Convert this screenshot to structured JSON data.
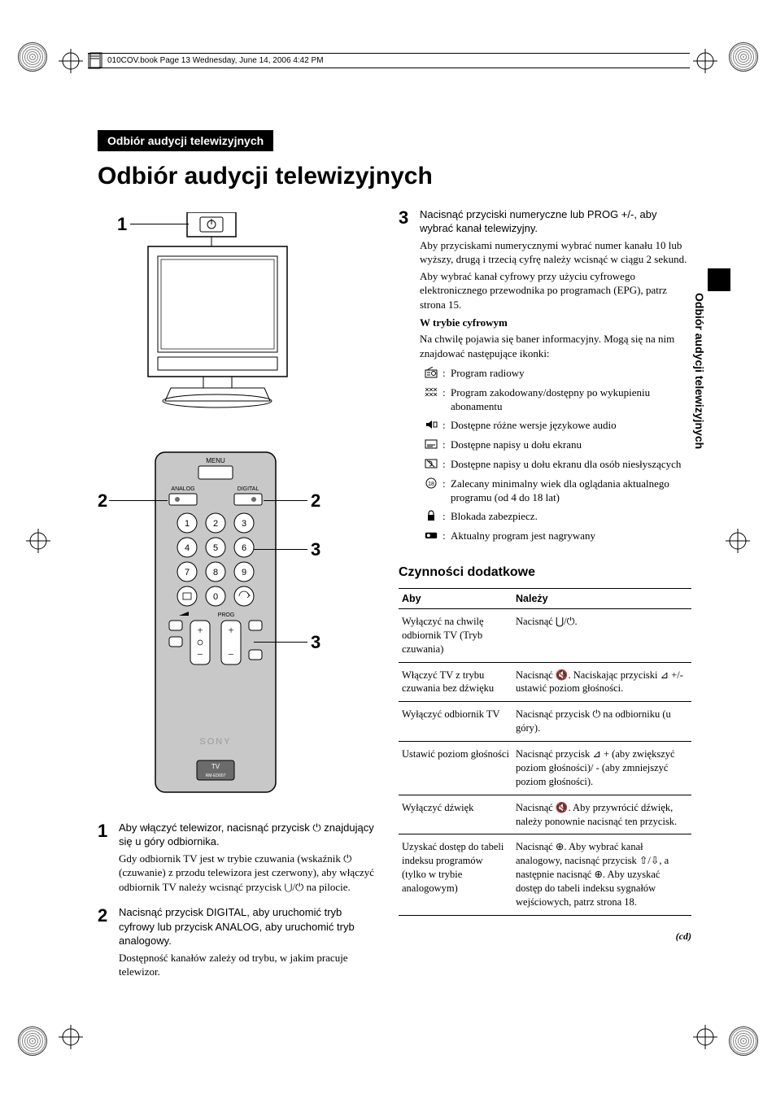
{
  "header_path": "010COV.book  Page 13  Wednesday, June 14, 2006  4:42 PM",
  "section_tag": "Odbiór audycji telewizyjnych",
  "main_title": "Odbiór audycji telewizyjnych",
  "side_label": "Odbiór audycji telewizyjnych",
  "callouts": {
    "c1": "1",
    "c2a": "2",
    "c2b": "2",
    "c3a": "3",
    "c3b": "3"
  },
  "remote_labels": {
    "menu": "MENU",
    "analog": "ANALOG",
    "digital": "DIGITAL",
    "prog": "PROG",
    "brand": "SONY",
    "tv": "TV",
    "model": "RM-ED007"
  },
  "steps": {
    "s1": {
      "num": "1",
      "lead": "Aby włączyć telewizor, nacisnąć przycisk ⏻ znajdujący się u góry odbiornika.",
      "follow": "Gdy odbiornik TV jest w trybie czuwania (wskaźnik ⏻ (czuwanie) z przodu telewizora jest czerwony), aby włączyć odbiornik TV należy wcisnąć przycisk ⋃/⏻ na pilocie."
    },
    "s2": {
      "num": "2",
      "lead": "Nacisnąć przycisk DIGITAL, aby uruchomić tryb cyfrowy lub przycisk ANALOG, aby uruchomić tryb analogowy.",
      "follow": "Dostępność kanałów zależy od trybu, w jakim pracuje telewizor."
    },
    "s3": {
      "num": "3",
      "lead": "Nacisnąć przyciski numeryczne lub PROG +/-, aby wybrać kanał telewizyjny.",
      "follow1": "Aby przyciskami numerycznymi wybrać numer kanału 10 lub wyższy, drugą i trzecią cyfrę należy wcisnąć w ciągu 2 sekund.",
      "follow2": "Aby wybrać kanał cyfrowy przy użyciu cyfrowego elektronicznego przewodnika po programach (EPG), patrz strona 15.",
      "digital_heading": "W trybie cyfrowym",
      "digital_text": "Na chwilę pojawia się baner informacyjny. Mogą się na nim znajdować następujące ikonki:"
    }
  },
  "icons": [
    {
      "name": "radio-icon",
      "desc": "Program radiowy"
    },
    {
      "name": "scrambled-icon",
      "desc": "Program zakodowany/dostępny po wykupieniu abonamentu"
    },
    {
      "name": "audio-icon",
      "desc": "Dostępne różne wersje językowe audio"
    },
    {
      "name": "subtitles-icon",
      "desc": "Dostępne napisy u dołu ekranu"
    },
    {
      "name": "hoh-icon",
      "desc": "Dostępne napisy u dołu ekranu dla osób niesłyszących"
    },
    {
      "name": "age-icon",
      "desc": "Zalecany minimalny wiek dla oglądania aktualnego programu (od 4 do 18 lat)"
    },
    {
      "name": "lock-icon",
      "desc": "Blokada zabezpiecz."
    },
    {
      "name": "rec-icon",
      "desc": "Aktualny program jest nagrywany"
    }
  ],
  "additional_heading": "Czynności dodatkowe",
  "table": {
    "h1": "Aby",
    "h2": "Należy",
    "rows": [
      {
        "c1": "Wyłączyć na chwilę odbiornik TV (Tryb czuwania)",
        "c2": "Nacisnąć ⋃/⏻."
      },
      {
        "c1": "Włączyć TV z trybu czuwania bez dźwięku",
        "c2": "Nacisnąć 🔇. Naciskając przyciski ⊿ +/-ustawić poziom głośności."
      },
      {
        "c1": "Wyłączyć odbiornik TV",
        "c2": "Nacisnąć przycisk ⏻ na odbiorniku (u góry)."
      },
      {
        "c1": "Ustawić poziom głośności",
        "c2": "Nacisnąć przycisk ⊿ + (aby zwiększyć poziom głośności)/ - (aby zmniejszyć poziom głośności)."
      },
      {
        "c1": "Wyłączyć dźwięk",
        "c2": "Nacisnąć 🔇. Aby przywrócić dźwięk, należy ponownie nacisnąć ten przycisk."
      },
      {
        "c1": "Uzyskać dostęp do tabeli indeksu programów (tylko w trybie analogowym)",
        "c2": "Nacisnąć ⊕. Aby wybrać kanał analogowy, nacisnąć przycisk ⇧/⇩, a następnie nacisnąć ⊕. Aby uzyskać dostęp do tabeli indeksu sygnałów wejściowych, patrz strona 18."
      }
    ]
  },
  "continued": "(cd)",
  "colors": {
    "black": "#000000",
    "white": "#ffffff",
    "gray_remote": "#c8c8c8",
    "gray_dark": "#6b6b6b"
  }
}
